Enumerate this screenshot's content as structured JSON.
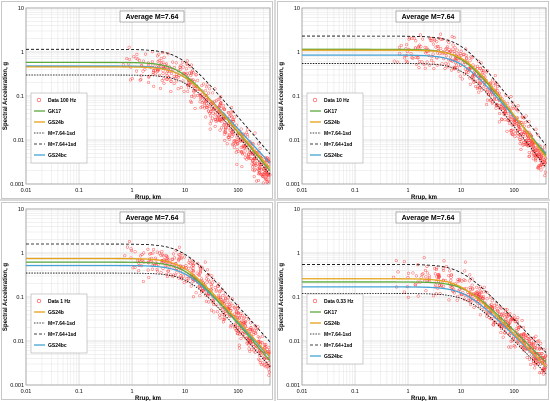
{
  "chart_data": [
    {
      "type": "scatter",
      "title": "Average M=7.64",
      "xlabel": "Rrup, km",
      "ylabel": "Spectral Acceleration, g",
      "xscale": "log",
      "yscale": "log",
      "xlim": [
        0.01,
        400
      ],
      "ylim": [
        0.001,
        10
      ],
      "xticks": [
        "0.01",
        "0.1",
        "1",
        "10",
        "100"
      ],
      "yticks": [
        "0.001",
        "0.01",
        "0.1",
        "1",
        "10"
      ],
      "grid": true,
      "legend_position": "left",
      "legend": [
        "Data 100 Hz",
        "GK17",
        "GS24b",
        "M=7.64-1sd",
        "M=7.64+1sd",
        "GS24bc"
      ],
      "curves": {
        "GK17": {
          "plateau": 0.58,
          "corner": 8,
          "slope": 1.45
        },
        "GS24b": {
          "plateau": 0.46,
          "corner": 9,
          "slope": 1.4
        },
        "GS24bc": {
          "plateau": 0.48,
          "corner": 8,
          "slope": 1.3
        },
        "minus1sd": {
          "plateau": 0.3,
          "corner": 11,
          "slope": 1.45
        },
        "plus1sd": {
          "plateau": 1.15,
          "corner": 8,
          "slope": 1.4
        }
      },
      "scatter_cloud": {
        "count": 520,
        "median_plateau": 0.5,
        "corner": 8,
        "slope": 1.5,
        "spread": 0.55,
        "x_range": [
          0.5,
          400
        ]
      }
    },
    {
      "type": "scatter",
      "title": "Average M=7.64",
      "xlabel": "Rrup, km",
      "ylabel": "Spectral Acceleration, g",
      "xscale": "log",
      "yscale": "log",
      "xlim": [
        0.01,
        400
      ],
      "ylim": [
        0.001,
        10
      ],
      "xticks": [
        "0.01",
        "0.1",
        "1",
        "10",
        "100"
      ],
      "yticks": [
        "0.001",
        "0.01",
        "0.1",
        "1",
        "10"
      ],
      "grid": true,
      "legend_position": "left",
      "legend": [
        "Data 10 Hz",
        "GK17",
        "GS24b",
        "M=7.64-1sd",
        "M=7.64+1sd",
        "GS24bc"
      ],
      "curves": {
        "GK17": {
          "plateau": 1.15,
          "corner": 10,
          "slope": 1.5
        },
        "GS24b": {
          "plateau": 1.1,
          "corner": 12,
          "slope": 1.6
        },
        "GS24bc": {
          "plateau": 0.85,
          "corner": 10,
          "slope": 1.4
        },
        "minus1sd": {
          "plateau": 0.55,
          "corner": 12,
          "slope": 1.55
        },
        "plus1sd": {
          "plateau": 2.3,
          "corner": 10,
          "slope": 1.55
        }
      },
      "scatter_cloud": {
        "count": 520,
        "median_plateau": 1.1,
        "corner": 10,
        "slope": 1.6,
        "spread": 0.5,
        "x_range": [
          0.5,
          400
        ]
      }
    },
    {
      "type": "scatter",
      "title": "Average M=7.64",
      "xlabel": "Rrup, km",
      "ylabel": "Spectral Acceleration, g",
      "xscale": "log",
      "yscale": "log",
      "xlim": [
        0.01,
        400
      ],
      "ylim": [
        0.001,
        10
      ],
      "xticks": [
        "0.01",
        "0.1",
        "1",
        "10",
        "100"
      ],
      "yticks": [
        "0.001",
        "0.01",
        "0.1",
        "1",
        "10"
      ],
      "grid": true,
      "legend_position": "left",
      "legend": [
        "Data 1 Hz",
        "GS24b",
        "M=7.64-1sd",
        "M=7.64+1sd",
        "GS24bc"
      ],
      "curves": {
        "GK17": {
          "plateau": 0.62,
          "corner": 10,
          "slope": 1.4
        },
        "GS24b": {
          "plateau": 0.75,
          "corner": 9,
          "slope": 1.35
        },
        "GS24bc": {
          "plateau": 0.52,
          "corner": 10,
          "slope": 1.3
        },
        "minus1sd": {
          "plateau": 0.35,
          "corner": 12,
          "slope": 1.4
        },
        "plus1sd": {
          "plateau": 1.6,
          "corner": 9,
          "slope": 1.35
        }
      },
      "scatter_cloud": {
        "count": 480,
        "median_plateau": 0.7,
        "corner": 10,
        "slope": 1.4,
        "spread": 0.5,
        "x_range": [
          0.5,
          400
        ]
      }
    },
    {
      "type": "scatter",
      "title": "Average M=7.64",
      "xlabel": "Rrup, km",
      "ylabel": "Spectral Acceleration, g",
      "xscale": "log",
      "yscale": "log",
      "xlim": [
        0.01,
        400
      ],
      "ylim": [
        0.001,
        10
      ],
      "xticks": [
        "0.01",
        "0.1",
        "1",
        "10",
        "100"
      ],
      "yticks": [
        "0.001",
        "0.01",
        "0.1",
        "1",
        "10"
      ],
      "grid": true,
      "legend_position": "left",
      "legend": [
        "Data 0.33 Hz",
        "GK17",
        "GS24b",
        "M=7.64-1sd",
        "M=7.64+1sd",
        "GS24bc"
      ],
      "curves": {
        "GK17": {
          "plateau": 0.22,
          "corner": 12,
          "slope": 1.2
        },
        "GS24b": {
          "plateau": 0.26,
          "corner": 10,
          "slope": 1.25
        },
        "GS24bc": {
          "plateau": 0.17,
          "corner": 12,
          "slope": 1.2
        },
        "minus1sd": {
          "plateau": 0.12,
          "corner": 14,
          "slope": 1.25
        },
        "plus1sd": {
          "plateau": 0.55,
          "corner": 10,
          "slope": 1.25
        }
      },
      "scatter_cloud": {
        "count": 460,
        "median_plateau": 0.25,
        "corner": 12,
        "slope": 1.25,
        "spread": 0.5,
        "x_range": [
          0.5,
          400
        ]
      }
    }
  ],
  "colors": {
    "data_marker": "#ff3b3b",
    "GK17": "#5aab3c",
    "GS24b": "#e6a21a",
    "GS24bc": "#45a3d6",
    "sd_lines": "#000000",
    "grid": "#e3e3e3"
  }
}
